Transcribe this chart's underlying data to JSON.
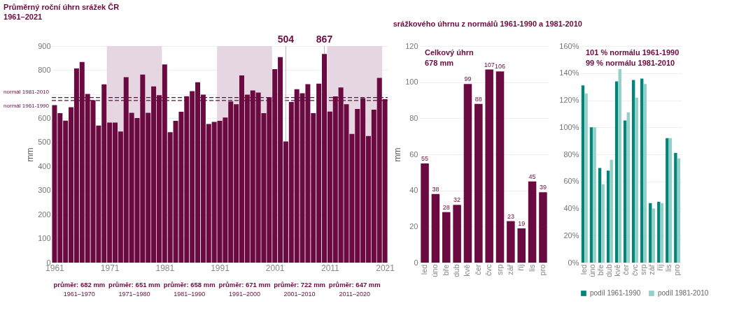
{
  "chart_data": [
    {
      "type": "bar",
      "title": "Průměrný roční úhrn srážek ČR",
      "subtitle": "1961–2021",
      "ylabel": "mm",
      "color": "#6b0a40",
      "x": [
        1961,
        1962,
        1963,
        1964,
        1965,
        1966,
        1967,
        1968,
        1969,
        1970,
        1971,
        1972,
        1973,
        1974,
        1975,
        1976,
        1977,
        1978,
        1979,
        1980,
        1981,
        1982,
        1983,
        1984,
        1985,
        1986,
        1987,
        1988,
        1989,
        1990,
        1991,
        1992,
        1993,
        1994,
        1995,
        1996,
        1997,
        1998,
        1999,
        2000,
        2001,
        2002,
        2003,
        2004,
        2005,
        2006,
        2007,
        2008,
        2009,
        2010,
        2011,
        2012,
        2013,
        2014,
        2015,
        2016,
        2017,
        2018,
        2019,
        2020,
        2021
      ],
      "values": [
        655,
        621,
        590,
        646,
        807,
        834,
        701,
        675,
        570,
        741,
        582,
        582,
        545,
        771,
        623,
        601,
        782,
        623,
        732,
        696,
        824,
        542,
        589,
        627,
        692,
        713,
        750,
        698,
        576,
        585,
        589,
        603,
        670,
        658,
        778,
        698,
        716,
        707,
        621,
        687,
        804,
        854,
        504,
        668,
        721,
        704,
        742,
        621,
        744,
        867,
        628,
        691,
        728,
        658,
        535,
        639,
        684,
        526,
        636,
        768,
        679
      ],
      "xlim": [
        1960.5,
        2021.5
      ],
      "xticks": [
        1961,
        1971,
        1981,
        1991,
        2001,
        2011,
        2021
      ],
      "ylim": [
        0,
        900
      ],
      "yticks": [
        0,
        100,
        200,
        300,
        400,
        500,
        600,
        {
          "value": 700,
          "label": null
        },
        800,
        900
      ],
      "grid": "y",
      "ref_lines": [
        {
          "axis": "y",
          "value": 686,
          "label": "normál 1981-2010",
          "color": "#6b0a40",
          "line_style": "dashed"
        },
        {
          "axis": "y",
          "value": 674,
          "label": "normál 1961-1990",
          "color": "#6b0a40",
          "line_style": "dashed"
        }
      ],
      "bands": [
        {
          "axis": "x",
          "from": 1970.5,
          "to": 1980.5,
          "color": "#e3d2de"
        },
        {
          "axis": "x",
          "from": 1990.5,
          "to": 2000.5,
          "color": "#e3d2de"
        },
        {
          "axis": "x",
          "from": 2010.5,
          "to": 2020.5,
          "color": "#e3d2de"
        }
      ],
      "annotations": [
        {
          "text": "504",
          "x": 2003,
          "y": 504
        },
        {
          "text": "867",
          "x": 2010,
          "y": 867
        },
        "průměr: 682 mm",
        "1961–1970",
        "průměr: 651 mm",
        "1971–1980",
        "průměr: 658 mm",
        "1981–1990",
        "průměr: 671 mm",
        "1991–2000",
        "průměr: 722 mm",
        "2001–2010",
        "průměr: 647 mm",
        "2011–2020"
      ]
    },
    {
      "type": "bar",
      "title": "srážkového úhrnu z normálů 1961-1990 a 1981-2010",
      "ylabel": "mm",
      "color": "#6b0a40",
      "categories": [
        "led",
        "úno",
        "bře",
        "dub",
        "kvě",
        "čer",
        "čvc",
        "srp",
        "zář",
        "říj",
        "lis",
        "pro"
      ],
      "values": [
        55,
        38,
        28,
        32,
        99,
        88,
        107,
        106,
        23,
        19,
        45,
        39
      ],
      "ylim": [
        0,
        120
      ],
      "yticks": [
        0,
        20,
        40,
        60,
        80,
        100,
        120
      ],
      "grid": "y",
      "data_labels": true,
      "annotations": [
        "Celkový úhrn",
        "678 mm"
      ]
    },
    {
      "type": "bar",
      "categories": [
        "led",
        "úno",
        "bře",
        "dub",
        "kvě",
        "čer",
        "čvc",
        "srp",
        "zář",
        "říj",
        "lis",
        "pro"
      ],
      "series": [
        {
          "name": "podíl 1961-1990",
          "color": "#00857a",
          "values": [
            131,
            100,
            70,
            68,
            134,
            105,
            135,
            136,
            44,
            45,
            92,
            81
          ]
        },
        {
          "name": "podíl 1981-2010",
          "color": "#93d1c8",
          "values": [
            125,
            100,
            58,
            76,
            143,
            111,
            122,
            132,
            40,
            44,
            92,
            77
          ]
        }
      ],
      "ylim": [
        0,
        160
      ],
      "yticks": [
        {
          "value": 0,
          "label": "0%"
        },
        {
          "value": 20,
          "label": "20%"
        },
        {
          "value": 40,
          "label": "40%"
        },
        {
          "value": 60,
          "label": "60%"
        },
        {
          "value": 80,
          "label": "80%"
        },
        {
          "value": 100,
          "label": "100%"
        },
        {
          "value": 120,
          "label": "120%"
        },
        {
          "value": 140,
          "label": "140%"
        },
        {
          "value": 160,
          "label": "160%"
        }
      ],
      "grid": "y",
      "legend": "bottom",
      "annotations": [
        "101 % normálu 1961-1990",
        "99 % normálu 1981-2010"
      ]
    }
  ]
}
